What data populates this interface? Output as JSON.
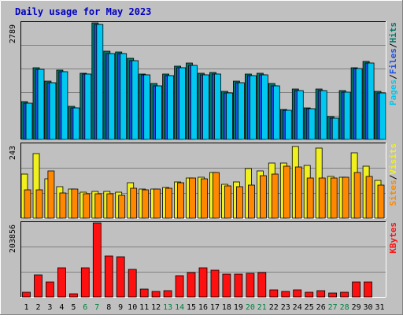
{
  "chart_data": {
    "type": "bar",
    "title": "Daily usage for May 2023",
    "days": [
      "1",
      "2",
      "3",
      "4",
      "5",
      "6",
      "7",
      "8",
      "9",
      "10",
      "11",
      "12",
      "13",
      "14",
      "15",
      "16",
      "17",
      "18",
      "19",
      "20",
      "21",
      "22",
      "23",
      "24",
      "25",
      "26",
      "27",
      "28",
      "29",
      "30",
      "31"
    ],
    "weekend_days": [
      "6",
      "7",
      "13",
      "14",
      "20",
      "21",
      "27",
      "28"
    ],
    "colors": {
      "hits": "#007a6a",
      "files": "#2050e0",
      "pages": "#00c8f0",
      "visits": "#f0f020",
      "sites": "#ff8800",
      "kbytes": "#ff1010",
      "title": "#0000c0",
      "weekday": "#000000",
      "weekend": "#008040",
      "panel": "#c0c0c0"
    },
    "panels": [
      {
        "id": "top",
        "max_label": "2789",
        "ymax": 2789,
        "legend": [
          "Pages",
          "/",
          "Files",
          "/",
          "Hits"
        ],
        "legend_colors": [
          "#00c8f0",
          "#000000",
          "#2050e0",
          "#000000",
          "#007a6a"
        ],
        "series": [
          {
            "name": "Hits",
            "values": [
              910,
              1710,
              1390,
              1660,
              800,
              1580,
              2780,
              2110,
              2090,
              1940,
              1570,
              1330,
              1560,
              1760,
              1820,
              1580,
              1600,
              1150,
              1390,
              1560,
              1580,
              1330,
              720,
              1210,
              760,
              1210,
              540,
              1170,
              1720,
              1860,
              1150
            ]
          },
          {
            "name": "Files",
            "values": [
              860,
              1680,
              1350,
              1620,
              750,
              1560,
              2760,
              2060,
              2060,
              1890,
              1540,
              1280,
              1530,
              1710,
              1780,
              1540,
              1560,
              1110,
              1360,
              1530,
              1550,
              1280,
              690,
              1170,
              730,
              1170,
              500,
              1130,
              1690,
              1820,
              1110
            ]
          },
          {
            "name": "Pages",
            "values": [
              860,
              1680,
              1350,
              1620,
              750,
              1560,
              2760,
              2060,
              2060,
              1890,
              1540,
              1280,
              1530,
              1710,
              1780,
              1540,
              1560,
              1110,
              1360,
              1530,
              1550,
              1280,
              690,
              1170,
              730,
              1170,
              500,
              1130,
              1690,
              1820,
              1110
            ]
          }
        ]
      },
      {
        "id": "middle",
        "max_label": "243",
        "ymax": 243,
        "legend": [
          "Sites",
          "/",
          "Visits"
        ],
        "legend_colors": [
          "#ff8800",
          "#000000",
          "#f0f020"
        ],
        "series": [
          {
            "name": "Visits",
            "values": [
              146,
              213,
              128,
              103,
              95,
              85,
              87,
              87,
              86,
              116,
              96,
              96,
              100,
              118,
              131,
              134,
              150,
              111,
              119,
              162,
              154,
              181,
              181,
              236,
              172,
              231,
              136,
              135,
              215,
              171,
              125
            ]
          },
          {
            "name": "Sites",
            "values": [
              93,
              93,
              156,
              84,
              95,
              79,
              80,
              80,
              75,
              98,
              94,
              96,
              98,
              116,
              131,
              130,
              150,
              105,
              104,
              108,
              139,
              144,
              170,
              167,
              131,
              131,
              132,
              135,
              150,
              136,
              108
            ]
          }
        ]
      },
      {
        "id": "bottom",
        "max_label": "203856",
        "ymax": 203856,
        "legend": [
          "KBytes"
        ],
        "legend_colors": [
          "#ff1010"
        ],
        "series": [
          {
            "name": "KBytes",
            "values": [
              12000,
              60000,
              42000,
              80000,
              9000,
              80000,
              203000,
              112000,
              110000,
              76000,
              21000,
              15000,
              17000,
              58000,
              67000,
              80000,
              73000,
              62000,
              62000,
              66000,
              67000,
              20000,
              16000,
              20000,
              12000,
              17000,
              10000,
              14000,
              42000,
              41000,
              0
            ]
          }
        ]
      }
    ]
  }
}
